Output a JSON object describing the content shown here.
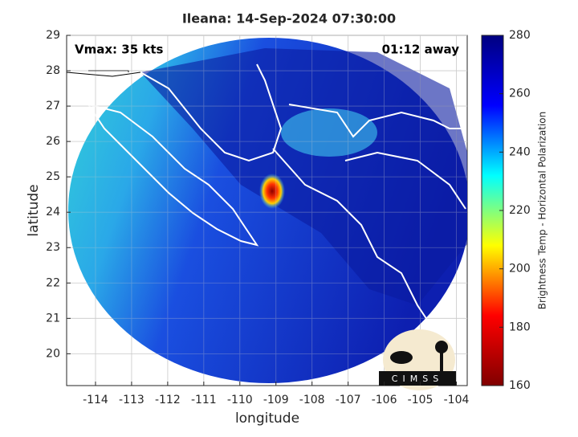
{
  "chart_data": {
    "type": "map",
    "title": "Ileana: 14-Sep-2024 07:30:00",
    "annotations": [
      "Vmax: 35 kts",
      "01:12 away"
    ],
    "x_label": "longitude",
    "y_label": "latitude",
    "xlim": [
      -114.8,
      -103.7
    ],
    "xticks": [
      -114,
      -113,
      -112,
      -111,
      -110,
      -109,
      -108,
      -107,
      -106,
      -105,
      -104
    ],
    "ylim": [
      19.1,
      29
    ],
    "yticks": [
      20,
      21,
      22,
      23,
      24,
      25,
      26,
      27,
      28,
      29
    ],
    "grid": true,
    "colorbar": {
      "label": "Brightness Temp - Horizontal Polarization",
      "lim": [
        160,
        280
      ],
      "ticks": [
        160,
        180,
        200,
        220,
        240,
        260,
        280
      ],
      "colormap": "jet"
    },
    "logo": "CIMSS"
  }
}
